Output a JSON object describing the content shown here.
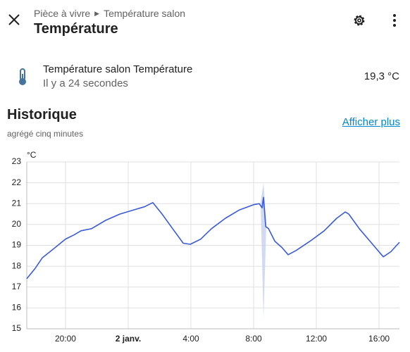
{
  "header": {
    "area": "Pièce à vivre",
    "entity": "Température salon",
    "title": "Température"
  },
  "entity": {
    "name": "Température salon Température",
    "last_changed": "Il y a 24 secondes",
    "state": "19,3 °C"
  },
  "history": {
    "title": "Historique",
    "subtitle": "agrégé cinq minutes",
    "link": "Afficher plus"
  },
  "chart_data": {
    "type": "line",
    "y_label": "°C",
    "xlim": [
      17.53,
      41.3
    ],
    "ylim": [
      15,
      23
    ],
    "xticks": [
      {
        "value": 20,
        "label": "20:00"
      },
      {
        "value": 24,
        "label": "2 janv.",
        "bold": true
      },
      {
        "value": 28,
        "label": "4:00"
      },
      {
        "value": 32,
        "label": "8:00"
      },
      {
        "value": 36,
        "label": "12:00"
      },
      {
        "value": 40,
        "label": "16:00"
      }
    ],
    "yticks": [
      15,
      16,
      17,
      18,
      19,
      20,
      21,
      22,
      23
    ],
    "grid": true,
    "series": [
      {
        "name": "Température salon Température",
        "color": "#3b5bdb",
        "x": [
          17.53,
          18.07,
          18.52,
          19.19,
          20.0,
          20.54,
          20.99,
          21.66,
          22.56,
          23.46,
          24.36,
          25.04,
          25.57,
          26.16,
          26.83,
          27.51,
          27.96,
          28.63,
          29.31,
          30.2,
          31.1,
          32.0,
          32.36,
          32.54,
          32.63,
          32.77,
          32.95,
          33.35,
          33.8,
          34.2,
          34.7,
          35.6,
          36.5,
          37.3,
          37.84,
          38.07,
          38.74,
          39.42,
          39.87,
          40.27,
          40.76,
          41.3
        ],
        "values": [
          17.4,
          17.9,
          18.4,
          18.8,
          19.3,
          19.5,
          19.7,
          19.8,
          20.2,
          20.5,
          20.7,
          20.85,
          21.05,
          20.5,
          19.8,
          19.1,
          19.05,
          19.3,
          19.8,
          20.3,
          20.7,
          20.95,
          21.0,
          20.8,
          21.3,
          19.9,
          19.8,
          19.2,
          18.9,
          18.55,
          18.75,
          19.2,
          19.7,
          20.3,
          20.6,
          20.5,
          19.8,
          19.2,
          18.8,
          18.45,
          18.7,
          19.15
        ]
      }
    ],
    "band": {
      "color": "#c5cff0",
      "x": [
        32.45,
        32.63,
        32.8
      ],
      "low": [
        20.9,
        15.5,
        19.8
      ],
      "high": [
        21.1,
        22.0,
        20.1
      ]
    }
  }
}
